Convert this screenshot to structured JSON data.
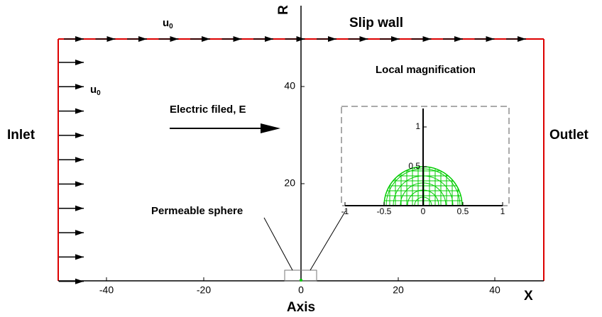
{
  "labels": {
    "inlet": "Inlet",
    "outlet": "Outlet",
    "slip_wall": "Slip wall",
    "axis": "Axis",
    "x_axis": "X",
    "r_axis": "R",
    "electric_field": "Electric filed, E",
    "local_magnification": "Local magnification",
    "permeable_sphere": "Permeable sphere",
    "velocity_top": {
      "symbol": "u",
      "subscript": "0"
    },
    "velocity_inlet": {
      "symbol": "u",
      "subscript": "0"
    }
  },
  "main_axes": {
    "x_ticks": [
      "-40",
      "-20",
      "0",
      "20",
      "40"
    ],
    "r_ticks": [
      "20",
      "40"
    ]
  },
  "inset_axes": {
    "x_ticks": [
      "-1",
      "-0.5",
      "0",
      "0.5",
      "1"
    ],
    "r_ticks": [
      "0.5",
      "1"
    ]
  }
}
